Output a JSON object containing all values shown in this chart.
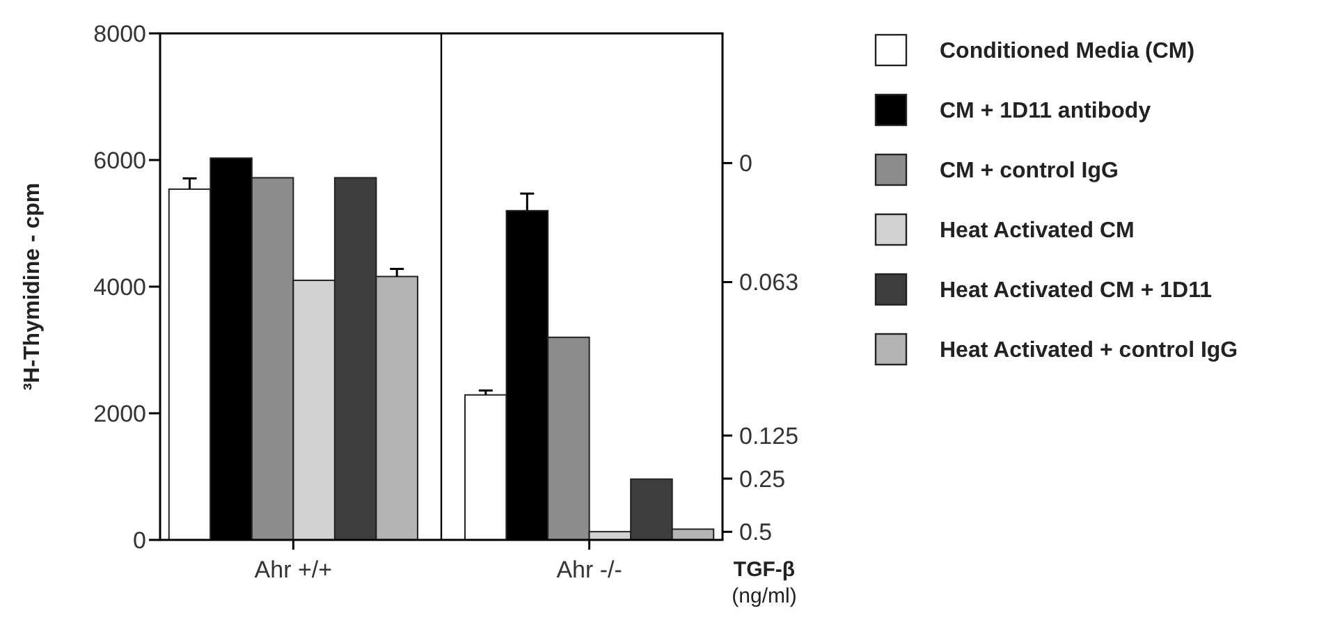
{
  "chart_data": {
    "type": "bar",
    "ylabel": "³H-Thymidine - cpm",
    "y2label": "TGF-β (ng/ml)",
    "categories": [
      "Ahr +/+",
      "Ahr -/-"
    ],
    "series": [
      {
        "name": "Conditioned Media (CM)",
        "color": "#ffffff",
        "values": [
          5540,
          2290
        ],
        "errors": [
          [
            5540,
            5710
          ],
          [
            2290,
            2360
          ]
        ]
      },
      {
        "name": "CM + 1D11 antibody",
        "color": "#000000",
        "values": [
          6030,
          5200
        ],
        "errors": [
          null,
          [
            5200,
            5470
          ]
        ]
      },
      {
        "name": "CM + control IgG",
        "color": "#8c8c8c",
        "values": [
          5720,
          3200
        ]
      },
      {
        "name": "Heat Activated CM",
        "color": "#d2d2d2",
        "values": [
          4100,
          130
        ]
      },
      {
        "name": "Heat Activated CM + 1D11",
        "color": "#3e3e3e",
        "values": [
          5720,
          960
        ]
      },
      {
        "name": "Heat Activated + control IgG",
        "color": "#b4b4b4",
        "values": [
          4160,
          170
        ],
        "errors": [
          [
            4160,
            4280
          ],
          null
        ]
      }
    ],
    "ylim": [
      0,
      8000
    ],
    "yticks": [
      0,
      2000,
      4000,
      6000,
      8000
    ],
    "annotations": [
      "0",
      "0.063",
      "0.125",
      "0.25",
      "0.5"
    ],
    "legend": "right",
    "grid": false
  }
}
